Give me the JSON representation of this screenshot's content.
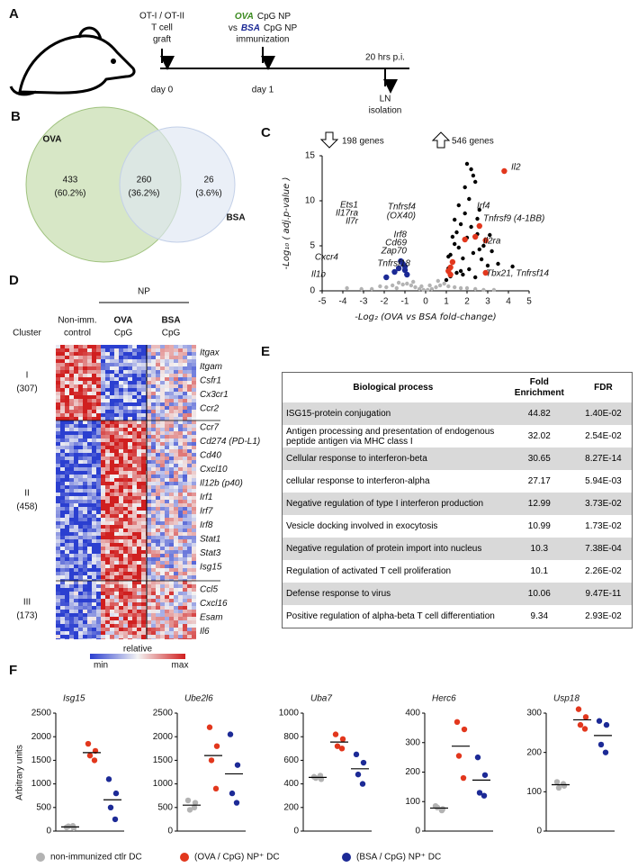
{
  "panels": [
    "A",
    "B",
    "C",
    "D",
    "E",
    "F"
  ],
  "panel_a": {
    "graft_lines": [
      "OT-I / OT-II",
      "T cell",
      "graft"
    ],
    "day0": "day 0",
    "ova": "OVA",
    "ova_suffix": "CpG NP",
    "vs": "vs",
    "bsa": "BSA",
    "bsa_suffix": "CpG NP",
    "immunization": "immunization",
    "day1": "day 1",
    "time": "20 hrs p.i.",
    "isolation_lines": [
      "LN",
      "isolation"
    ]
  },
  "panel_b": {
    "sets": [
      {
        "label": "OVA",
        "count": 433,
        "percent": "(60.2%)"
      },
      {
        "count": 260,
        "percent": "(36.2%)"
      },
      {
        "label": "BSA",
        "count": 26,
        "percent": "(3.6%)"
      }
    ]
  },
  "panel_d": {
    "np": "NP",
    "cluster_header": "Cluster",
    "groups": [
      {
        "lines": [
          "Non-imm.",
          "control"
        ]
      },
      {
        "lines": [
          "OVA",
          "CpG"
        ]
      },
      {
        "lines": [
          "BSA",
          "CpG"
        ]
      }
    ],
    "clusters": [
      {
        "name": "I",
        "count": "(307)",
        "genes": [
          "Itgax",
          "Itgam",
          "Csfr1",
          "Cx3cr1",
          "Ccr2"
        ]
      },
      {
        "name": "II",
        "count": "(458)",
        "genes": [
          "Ccr7",
          "Cd274 (PD-L1)",
          "Cd40",
          "Cxcl10",
          "Il12b (p40)",
          "Irf1",
          "Irf7",
          "Irf8",
          "Stat1",
          "Stat3",
          "Isg15"
        ]
      },
      {
        "name": "III",
        "count": "(173)",
        "genes": [
          "Ccl5",
          "Cxcl16",
          "Esam",
          "Il6"
        ]
      }
    ],
    "scale": {
      "title": "relative",
      "min": "min",
      "max": "max"
    }
  },
  "panel_e": {
    "columns": [
      "Biological process",
      "Fold Enrichment",
      "FDR"
    ],
    "rows": [
      [
        "ISG15-protein conjugation",
        44.82,
        "1.40E-02"
      ],
      [
        "Antigen processing and presentation of endogenous peptide antigen via MHC class I",
        32.02,
        "2.54E-02"
      ],
      [
        "Cellular response to interferon-beta",
        30.65,
        "8.27E-14"
      ],
      [
        "cellular response to interferon-alpha",
        27.17,
        "5.94E-03"
      ],
      [
        "Negative regulation of type I interferon production",
        12.99,
        "3.73E-02"
      ],
      [
        "Vesicle docking involved in exocytosis",
        10.99,
        "1.73E-02"
      ],
      [
        "Negative regulation of protein import into nucleus",
        10.3,
        "7.38E-04"
      ],
      [
        "Regulation of activated T cell proliferation",
        10.1,
        "2.26E-02"
      ],
      [
        "Defense response to virus",
        10.06,
        "9.47E-11"
      ],
      [
        "Positive regulation of alpha-beta T cell differentiation",
        9.34,
        "2.93E-02"
      ]
    ]
  },
  "panel_f": {
    "y_label": "Arbitrary units",
    "legend": [
      {
        "name": "non-immunized ctlr DC",
        "color": "#b3b3b3"
      },
      {
        "name": "(OVA / CpG) NP⁺ DC",
        "color": "#e2371d"
      },
      {
        "name": "(BSA / CpG) NP⁺ DC",
        "color": "#1c2a96"
      }
    ]
  },
  "chart_data": [
    {
      "type": "scatter",
      "x_label": "-Log₂ (OVA vs BSA fold-change)",
      "y_label": "-Log₁₀ ( adj.p-value )",
      "xlim": [
        -5,
        5
      ],
      "xticks": [
        -5,
        -4,
        -3,
        -2,
        -1,
        0,
        1,
        2,
        3,
        4,
        5
      ],
      "ylim": [
        0,
        15
      ],
      "yticks": [
        0,
        5,
        10,
        15
      ],
      "annotations": [
        "198 genes",
        "546 genes"
      ],
      "gene_labels": [
        "Il2",
        "Irf4",
        "Tnfrsf9 (4-1BB)",
        "Il2ra",
        "Tnfrsf4",
        "(OX40)",
        "Irf8",
        "Cd69",
        "Zap70",
        "Tnfrsf18",
        "Tbx21, Tnfrsf14",
        "Ets1",
        "Il17ra",
        "Il7r",
        "Cxcr4",
        "Il1b"
      ],
      "series": [
        {
          "color": "#b3b3b3",
          "x": [
            -3.8,
            -3.1,
            -2.6,
            -2.2,
            -1.9,
            -1.6,
            -1.3,
            -1.1,
            -0.9,
            -0.7,
            -0.5,
            -0.3,
            -0.1,
            0.1,
            0.3,
            0.5,
            0.7,
            0.9,
            1.1,
            1.4,
            1.7,
            2.0,
            2.4,
            2.8,
            3.3,
            -0.6,
            0.6,
            -0.2,
            0.2,
            -1.4
          ],
          "y": [
            0.3,
            0.2,
            0.2,
            0.5,
            0.4,
            0.6,
            0.9,
            0.7,
            0.8,
            0.6,
            0.4,
            0.2,
            0.1,
            0.1,
            0.2,
            0.4,
            0.6,
            0.8,
            0.5,
            0.4,
            0.3,
            0.3,
            0.2,
            0.1,
            0.1,
            1.0,
            1.1,
            0.5,
            0.6,
            0.3
          ]
        },
        {
          "color": "#000000",
          "x": [
            1.0,
            1.1,
            1.2,
            1.3,
            1.4,
            1.5,
            1.6,
            1.7,
            1.8,
            1.9,
            2.0,
            2.1,
            2.2,
            2.3,
            2.4,
            2.5,
            2.6,
            2.7,
            2.8,
            3.0,
            3.2,
            3.5,
            4.2,
            1.2,
            1.5,
            1.8,
            2.1,
            2.4,
            1.3,
            1.6,
            1.9,
            2.2,
            2.5,
            2.0,
            2.3,
            3.1,
            1.1,
            1.4,
            1.7,
            2.6
          ],
          "y": [
            1.2,
            2.5,
            4.0,
            3.1,
            5.2,
            6.5,
            4.8,
            7.4,
            3.6,
            8.6,
            5.9,
            10.2,
            7.1,
            4.2,
            12.1,
            6.3,
            9.0,
            3.5,
            5.0,
            2.8,
            4.4,
            3.0,
            2.7,
            1.6,
            2.0,
            1.8,
            2.4,
            1.5,
            6.0,
            9.5,
            11.5,
            13.5,
            8.0,
            14.1,
            12.8,
            6.2,
            3.8,
            7.9,
            2.2,
            4.6
          ]
        },
        {
          "color": "#e2371d",
          "x": [
            3.8,
            2.6,
            2.4,
            2.9,
            1.9,
            2.9,
            1.3,
            1.2,
            1.1,
            1.2
          ],
          "y": [
            13.3,
            7.2,
            6.0,
            5.6,
            5.7,
            2.0,
            3.2,
            2.6,
            2.2,
            1.8
          ]
        },
        {
          "color": "#1c2a96",
          "x": [
            -1.2,
            -1.1,
            -1.0,
            -1.5,
            -1.9,
            -1.3,
            -0.9,
            -1.0
          ],
          "y": [
            3.3,
            3.0,
            2.7,
            2.1,
            1.5,
            2.5,
            1.8,
            2.3
          ]
        }
      ]
    },
    {
      "type": "dot",
      "title": "Isg15",
      "ylim": [
        0,
        2500
      ],
      "yticks": [
        0,
        500,
        1000,
        1500,
        2000,
        2500
      ],
      "series": [
        {
          "color": "#b3b3b3",
          "values": [
            80,
            60,
            100,
            110
          ],
          "mean": 88
        },
        {
          "color": "#e2371d",
          "values": [
            1850,
            1700,
            1600,
            1500
          ],
          "mean": 1663
        },
        {
          "color": "#1c2a96",
          "values": [
            1100,
            800,
            500,
            250
          ],
          "mean": 663
        }
      ]
    },
    {
      "type": "dot",
      "title": "Ube2l6",
      "ylim": [
        0,
        2500
      ],
      "yticks": [
        0,
        500,
        1000,
        1500,
        2000,
        2500
      ],
      "series": [
        {
          "color": "#b3b3b3",
          "values": [
            650,
            600,
            450,
            500
          ],
          "mean": 550
        },
        {
          "color": "#e2371d",
          "values": [
            2200,
            1800,
            1500,
            900
          ],
          "mean": 1600
        },
        {
          "color": "#1c2a96",
          "values": [
            2050,
            1400,
            800,
            600
          ],
          "mean": 1213
        }
      ]
    },
    {
      "type": "dot",
      "title": "Uba7",
      "ylim": [
        0,
        1000
      ],
      "yticks": [
        0,
        200,
        400,
        600,
        800,
        1000
      ],
      "series": [
        {
          "color": "#b3b3b3",
          "values": [
            460,
            440,
            450,
            470
          ],
          "mean": 455
        },
        {
          "color": "#e2371d",
          "values": [
            820,
            780,
            720,
            700
          ],
          "mean": 755
        },
        {
          "color": "#1c2a96",
          "values": [
            650,
            580,
            480,
            400
          ],
          "mean": 528
        }
      ]
    },
    {
      "type": "dot",
      "title": "Herc6",
      "ylim": [
        0,
        400
      ],
      "yticks": [
        0,
        100,
        200,
        300,
        400
      ],
      "series": [
        {
          "color": "#b3b3b3",
          "values": [
            85,
            75,
            80,
            70
          ],
          "mean": 78
        },
        {
          "color": "#e2371d",
          "values": [
            370,
            345,
            255,
            180
          ],
          "mean": 288
        },
        {
          "color": "#1c2a96",
          "values": [
            250,
            190,
            130,
            120
          ],
          "mean": 173
        }
      ]
    },
    {
      "type": "dot",
      "title": "Usp18",
      "ylim": [
        0,
        300
      ],
      "yticks": [
        0,
        100,
        200,
        300
      ],
      "series": [
        {
          "color": "#b3b3b3",
          "values": [
            125,
            115,
            110,
            120
          ],
          "mean": 118
        },
        {
          "color": "#e2371d",
          "values": [
            310,
            290,
            270,
            260
          ],
          "mean": 283
        },
        {
          "color": "#1c2a96",
          "values": [
            280,
            270,
            220,
            200
          ],
          "mean": 243
        }
      ]
    }
  ]
}
